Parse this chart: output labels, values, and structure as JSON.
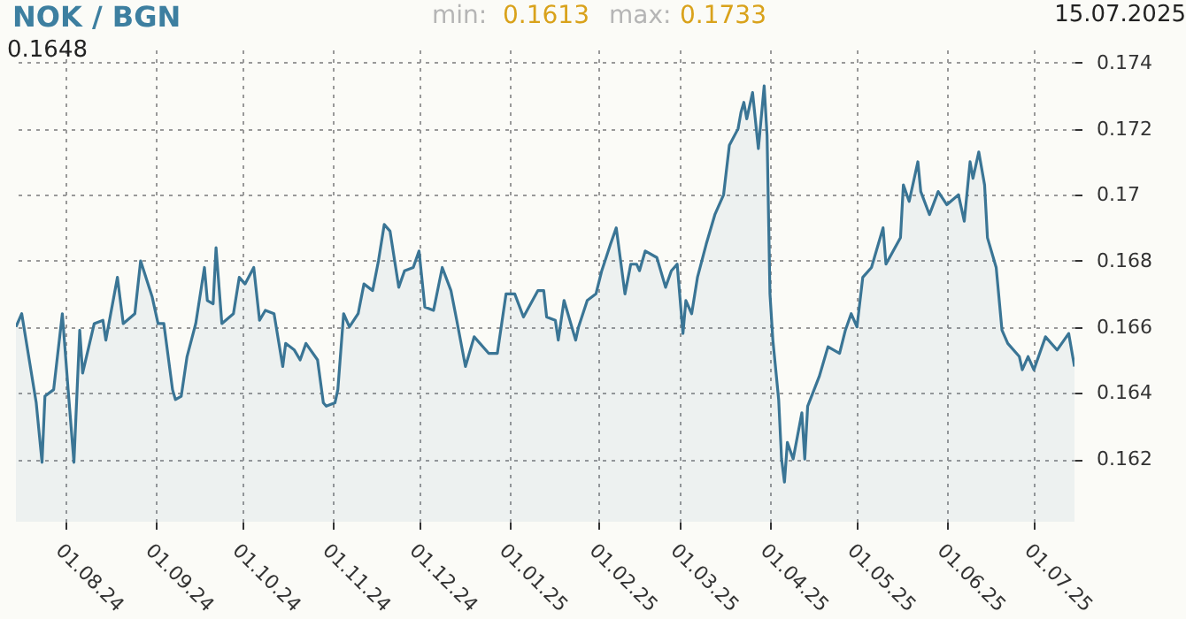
{
  "chart_data": {
    "type": "area",
    "title": "NOK / BGN",
    "annotations": [
      "0.1648",
      "min: 0.1613",
      "max: 0.1733",
      "15.07.2025"
    ],
    "x": [
      "2024-07-15",
      "2024-07-17",
      "2024-07-22",
      "2024-07-24",
      "2024-07-25",
      "2024-07-28",
      "2024-07-31",
      "2024-08-02",
      "2024-08-04",
      "2024-08-06",
      "2024-08-07",
      "2024-08-11",
      "2024-08-14",
      "2024-08-15",
      "2024-08-19",
      "2024-08-21",
      "2024-08-25",
      "2024-08-27",
      "2024-08-31",
      "2024-09-02",
      "2024-09-04",
      "2024-09-07",
      "2024-09-08",
      "2024-09-10",
      "2024-09-12",
      "2024-09-15",
      "2024-09-18",
      "2024-09-19",
      "2024-09-21",
      "2024-09-22",
      "2024-09-24",
      "2024-09-28",
      "2024-09-30",
      "2024-10-02",
      "2024-10-05",
      "2024-10-07",
      "2024-10-09",
      "2024-10-12",
      "2024-10-15",
      "2024-10-16",
      "2024-10-19",
      "2024-10-21",
      "2024-10-23",
      "2024-10-27",
      "2024-10-29",
      "2024-10-30",
      "2024-11-02",
      "2024-11-03",
      "2024-11-05",
      "2024-11-07",
      "2024-11-10",
      "2024-11-12",
      "2024-11-15",
      "2024-11-17",
      "2024-11-19",
      "2024-11-21",
      "2024-11-24",
      "2024-11-26",
      "2024-11-29",
      "2024-12-01",
      "2024-12-03",
      "2024-12-06",
      "2024-12-09",
      "2024-12-12",
      "2024-12-14",
      "2024-12-17",
      "2024-12-20",
      "2024-12-25",
      "2024-12-28",
      "2024-12-31",
      "2025-01-03",
      "2025-01-06",
      "2025-01-11",
      "2025-01-13",
      "2025-01-14",
      "2025-01-17",
      "2025-01-18",
      "2025-01-20",
      "2025-01-22",
      "2025-01-24",
      "2025-01-25",
      "2025-01-28",
      "2025-01-31",
      "2025-02-02",
      "2025-02-05",
      "2025-02-07",
      "2025-02-10",
      "2025-02-12",
      "2025-02-14",
      "2025-02-15",
      "2025-02-17",
      "2025-02-21",
      "2025-02-24",
      "2025-02-26",
      "2025-02-28",
      "2025-03-02",
      "2025-03-03",
      "2025-03-05",
      "2025-03-07",
      "2025-03-10",
      "2025-03-13",
      "2025-03-16",
      "2025-03-18",
      "2025-03-21",
      "2025-03-22",
      "2025-03-23",
      "2025-03-24",
      "2025-03-26",
      "2025-03-28",
      "2025-03-30",
      "2025-03-31",
      "2025-04-01",
      "2025-04-02",
      "2025-04-04",
      "2025-04-05",
      "2025-04-06",
      "2025-04-07",
      "2025-04-09",
      "2025-04-12",
      "2025-04-13",
      "2025-04-14",
      "2025-04-18",
      "2025-04-21",
      "2025-04-25",
      "2025-04-27",
      "2025-04-29",
      "2025-05-01",
      "2025-05-03",
      "2025-05-06",
      "2025-05-10",
      "2025-05-11",
      "2025-05-16",
      "2025-05-17",
      "2025-05-19",
      "2025-05-22",
      "2025-05-23",
      "2025-05-26",
      "2025-05-29",
      "2025-06-01",
      "2025-06-05",
      "2025-06-07",
      "2025-06-09",
      "2025-06-10",
      "2025-06-12",
      "2025-06-14",
      "2025-06-15",
      "2025-06-18",
      "2025-06-20",
      "2025-06-22",
      "2025-06-26",
      "2025-06-27",
      "2025-06-29",
      "2025-07-01",
      "2025-07-05",
      "2025-07-09",
      "2025-07-13",
      "2025-07-15"
    ],
    "series": [
      {
        "color": "#3a7595",
        "values": [
          0.166,
          0.1664,
          0.1637,
          0.1619,
          0.1639,
          0.1641,
          0.1664,
          0.1641,
          0.1619,
          0.1659,
          0.1646,
          0.1661,
          0.1662,
          0.1656,
          0.1675,
          0.1661,
          0.1664,
          0.168,
          0.1669,
          0.1661,
          0.1661,
          0.1641,
          0.1638,
          0.1639,
          0.1651,
          0.1661,
          0.1678,
          0.1668,
          0.1667,
          0.1684,
          0.1661,
          0.1664,
          0.1675,
          0.1673,
          0.1678,
          0.1662,
          0.1665,
          0.1664,
          0.1648,
          0.1655,
          0.1653,
          0.165,
          0.1655,
          0.165,
          0.1637,
          0.1636,
          0.1637,
          0.1641,
          0.1664,
          0.166,
          0.1664,
          0.1673,
          0.1671,
          0.168,
          0.1691,
          0.1689,
          0.1672,
          0.1677,
          0.1678,
          0.1683,
          0.1666,
          0.1665,
          0.1678,
          0.1671,
          0.1662,
          0.1648,
          0.1657,
          0.1652,
          0.1652,
          0.167,
          0.167,
          0.1663,
          0.1671,
          0.1671,
          0.1663,
          0.1662,
          0.1656,
          0.1668,
          0.1662,
          0.1656,
          0.166,
          0.1668,
          0.167,
          0.1677,
          0.1685,
          0.169,
          0.167,
          0.1679,
          0.1679,
          0.1677,
          0.1683,
          0.1681,
          0.1672,
          0.1677,
          0.1679,
          0.1658,
          0.1668,
          0.1664,
          0.1675,
          0.1685,
          0.1694,
          0.17,
          0.1715,
          0.172,
          0.1725,
          0.1728,
          0.1723,
          0.1731,
          0.1714,
          0.1733,
          0.1718,
          0.167,
          0.1656,
          0.1638,
          0.162,
          0.1613,
          0.1625,
          0.162,
          0.1634,
          0.162,
          0.1636,
          0.1645,
          0.1654,
          0.1652,
          0.1659,
          0.1664,
          0.166,
          0.1675,
          0.1678,
          0.169,
          0.1679,
          0.1687,
          0.1703,
          0.1698,
          0.171,
          0.1701,
          0.1694,
          0.1701,
          0.1697,
          0.17,
          0.1692,
          0.171,
          0.1705,
          0.1713,
          0.1703,
          0.1687,
          0.1678,
          0.1659,
          0.1655,
          0.1651,
          0.1647,
          0.1651,
          0.1647,
          0.1657,
          0.1653,
          0.1658,
          0.1648
        ]
      }
    ],
    "xlim": [
      "2024-07-15",
      "2025-07-15"
    ],
    "xticks": [
      {
        "value": "2024-08-01",
        "label": "01.08.24"
      },
      {
        "value": "2024-09-01",
        "label": "01.09.24"
      },
      {
        "value": "2024-10-01",
        "label": "01.10.24"
      },
      {
        "value": "2024-11-01",
        "label": "01.11.24"
      },
      {
        "value": "2024-12-01",
        "label": "01.12.24"
      },
      {
        "value": "2025-01-01",
        "label": "01.01.25"
      },
      {
        "value": "2025-02-01",
        "label": "01.02.25"
      },
      {
        "value": "2025-03-01",
        "label": "01.03.25"
      },
      {
        "value": "2025-04-01",
        "label": "01.04.25"
      },
      {
        "value": "2025-05-01",
        "label": "01.05.25"
      },
      {
        "value": "2025-06-01",
        "label": "01.06.25"
      },
      {
        "value": "2025-07-01",
        "label": "01.07.25"
      }
    ],
    "ylim": [
      0.1601,
      0.1744
    ],
    "yticks": [
      {
        "value": 0.162,
        "label": "0.162"
      },
      {
        "value": 0.164,
        "label": "0.164"
      },
      {
        "value": 0.166,
        "label": "0.166"
      },
      {
        "value": 0.168,
        "label": "0.168"
      },
      {
        "value": 0.17,
        "label": "0.17"
      },
      {
        "value": 0.172,
        "label": "0.172"
      },
      {
        "value": 0.174,
        "label": "0.174"
      }
    ],
    "grid": true,
    "line_style": "solid",
    "marker": "none"
  }
}
